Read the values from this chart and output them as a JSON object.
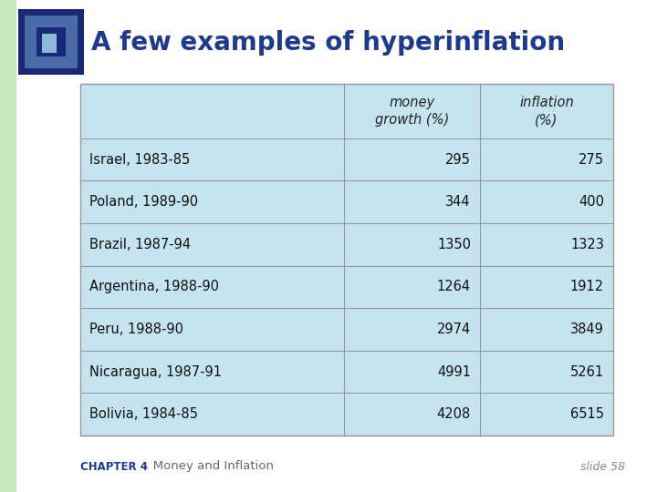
{
  "title": "A few examples of hyperinflation",
  "title_color": "#1E3A8A",
  "title_fontsize": 20,
  "col_headers": [
    "",
    "money\ngrowth (%)",
    "inflation\n(%)"
  ],
  "rows": [
    [
      "Israel, 1983-85",
      "295",
      "275"
    ],
    [
      "Poland, 1989-90",
      "344",
      "400"
    ],
    [
      "Brazil, 1987-94",
      "1350",
      "1323"
    ],
    [
      "Argentina, 1988-90",
      "1264",
      "1912"
    ],
    [
      "Peru, 1988-90",
      "2974",
      "3849"
    ],
    [
      "Nicaragua, 1987-91",
      "4991",
      "5261"
    ],
    [
      "Bolivia, 1984-85",
      "4208",
      "6515"
    ]
  ],
  "table_bg_color": "#C5E4F0",
  "table_border_color": "#999999",
  "slide_bg_color": "#FFFFFF",
  "left_bar_color": "#C8E6C0",
  "footer_chapter": "CHAPTER 4",
  "footer_title": "   Money and Inflation",
  "footer_right": "slide 58",
  "footer_chapter_color": "#1E3A8A",
  "footer_title_color": "#666666",
  "footer_slide_color": "#888888",
  "icon_outer_color": "#1A2878",
  "icon_mid_color": "#4A6BAA",
  "icon_inner_color": "#1A2878",
  "icon_light_color": "#8BB8D8"
}
